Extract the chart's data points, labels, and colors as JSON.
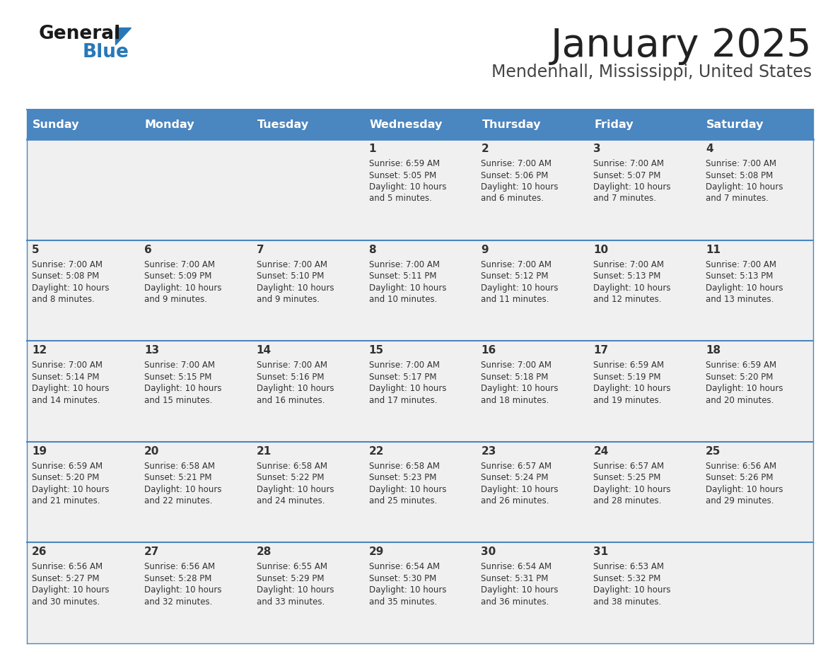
{
  "title": "January 2025",
  "subtitle": "Mendenhall, Mississippi, United States",
  "days_of_week": [
    "Sunday",
    "Monday",
    "Tuesday",
    "Wednesday",
    "Thursday",
    "Friday",
    "Saturday"
  ],
  "header_bg": "#4a86c0",
  "header_text": "#ffffff",
  "cell_bg": "#f0f0f0",
  "divider_color": "#4a86c0",
  "text_color": "#333333",
  "title_color": "#222222",
  "subtitle_color": "#444444",
  "brand_general_color": "#1a1a1a",
  "brand_blue_color": "#2878b8",
  "calendar_data": [
    [
      {
        "day": null,
        "sunrise": null,
        "sunset": null,
        "daylight": null
      },
      {
        "day": null,
        "sunrise": null,
        "sunset": null,
        "daylight": null
      },
      {
        "day": null,
        "sunrise": null,
        "sunset": null,
        "daylight": null
      },
      {
        "day": 1,
        "sunrise": "6:59 AM",
        "sunset": "5:05 PM",
        "daylight": "10 hours\nand 5 minutes."
      },
      {
        "day": 2,
        "sunrise": "7:00 AM",
        "sunset": "5:06 PM",
        "daylight": "10 hours\nand 6 minutes."
      },
      {
        "day": 3,
        "sunrise": "7:00 AM",
        "sunset": "5:07 PM",
        "daylight": "10 hours\nand 7 minutes."
      },
      {
        "day": 4,
        "sunrise": "7:00 AM",
        "sunset": "5:08 PM",
        "daylight": "10 hours\nand 7 minutes."
      }
    ],
    [
      {
        "day": 5,
        "sunrise": "7:00 AM",
        "sunset": "5:08 PM",
        "daylight": "10 hours\nand 8 minutes."
      },
      {
        "day": 6,
        "sunrise": "7:00 AM",
        "sunset": "5:09 PM",
        "daylight": "10 hours\nand 9 minutes."
      },
      {
        "day": 7,
        "sunrise": "7:00 AM",
        "sunset": "5:10 PM",
        "daylight": "10 hours\nand 9 minutes."
      },
      {
        "day": 8,
        "sunrise": "7:00 AM",
        "sunset": "5:11 PM",
        "daylight": "10 hours\nand 10 minutes."
      },
      {
        "day": 9,
        "sunrise": "7:00 AM",
        "sunset": "5:12 PM",
        "daylight": "10 hours\nand 11 minutes."
      },
      {
        "day": 10,
        "sunrise": "7:00 AM",
        "sunset": "5:13 PM",
        "daylight": "10 hours\nand 12 minutes."
      },
      {
        "day": 11,
        "sunrise": "7:00 AM",
        "sunset": "5:13 PM",
        "daylight": "10 hours\nand 13 minutes."
      }
    ],
    [
      {
        "day": 12,
        "sunrise": "7:00 AM",
        "sunset": "5:14 PM",
        "daylight": "10 hours\nand 14 minutes."
      },
      {
        "day": 13,
        "sunrise": "7:00 AM",
        "sunset": "5:15 PM",
        "daylight": "10 hours\nand 15 minutes."
      },
      {
        "day": 14,
        "sunrise": "7:00 AM",
        "sunset": "5:16 PM",
        "daylight": "10 hours\nand 16 minutes."
      },
      {
        "day": 15,
        "sunrise": "7:00 AM",
        "sunset": "5:17 PM",
        "daylight": "10 hours\nand 17 minutes."
      },
      {
        "day": 16,
        "sunrise": "7:00 AM",
        "sunset": "5:18 PM",
        "daylight": "10 hours\nand 18 minutes."
      },
      {
        "day": 17,
        "sunrise": "6:59 AM",
        "sunset": "5:19 PM",
        "daylight": "10 hours\nand 19 minutes."
      },
      {
        "day": 18,
        "sunrise": "6:59 AM",
        "sunset": "5:20 PM",
        "daylight": "10 hours\nand 20 minutes."
      }
    ],
    [
      {
        "day": 19,
        "sunrise": "6:59 AM",
        "sunset": "5:20 PM",
        "daylight": "10 hours\nand 21 minutes."
      },
      {
        "day": 20,
        "sunrise": "6:58 AM",
        "sunset": "5:21 PM",
        "daylight": "10 hours\nand 22 minutes."
      },
      {
        "day": 21,
        "sunrise": "6:58 AM",
        "sunset": "5:22 PM",
        "daylight": "10 hours\nand 24 minutes."
      },
      {
        "day": 22,
        "sunrise": "6:58 AM",
        "sunset": "5:23 PM",
        "daylight": "10 hours\nand 25 minutes."
      },
      {
        "day": 23,
        "sunrise": "6:57 AM",
        "sunset": "5:24 PM",
        "daylight": "10 hours\nand 26 minutes."
      },
      {
        "day": 24,
        "sunrise": "6:57 AM",
        "sunset": "5:25 PM",
        "daylight": "10 hours\nand 28 minutes."
      },
      {
        "day": 25,
        "sunrise": "6:56 AM",
        "sunset": "5:26 PM",
        "daylight": "10 hours\nand 29 minutes."
      }
    ],
    [
      {
        "day": 26,
        "sunrise": "6:56 AM",
        "sunset": "5:27 PM",
        "daylight": "10 hours\nand 30 minutes."
      },
      {
        "day": 27,
        "sunrise": "6:56 AM",
        "sunset": "5:28 PM",
        "daylight": "10 hours\nand 32 minutes."
      },
      {
        "day": 28,
        "sunrise": "6:55 AM",
        "sunset": "5:29 PM",
        "daylight": "10 hours\nand 33 minutes."
      },
      {
        "day": 29,
        "sunrise": "6:54 AM",
        "sunset": "5:30 PM",
        "daylight": "10 hours\nand 35 minutes."
      },
      {
        "day": 30,
        "sunrise": "6:54 AM",
        "sunset": "5:31 PM",
        "daylight": "10 hours\nand 36 minutes."
      },
      {
        "day": 31,
        "sunrise": "6:53 AM",
        "sunset": "5:32 PM",
        "daylight": "10 hours\nand 38 minutes."
      },
      {
        "day": null,
        "sunrise": null,
        "sunset": null,
        "daylight": null
      }
    ]
  ],
  "figsize": [
    11.88,
    9.18
  ],
  "dpi": 100
}
